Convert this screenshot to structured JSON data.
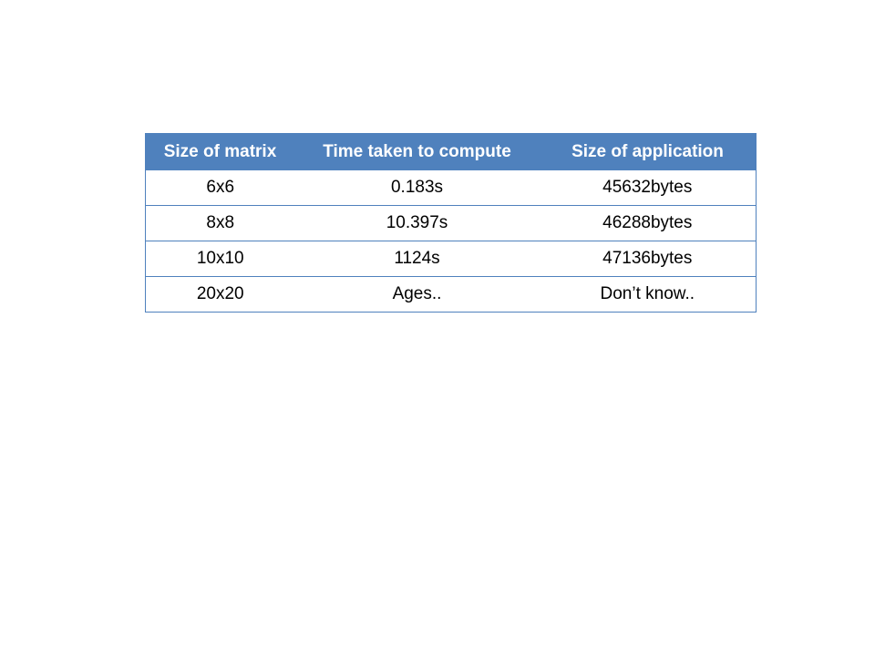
{
  "table": {
    "headers": [
      "Size of matrix",
      "Time taken to compute",
      "Size of application"
    ],
    "rows": [
      [
        "6x6",
        "0.183s",
        "45632bytes"
      ],
      [
        "8x8",
        "10.397s",
        "46288bytes"
      ],
      [
        "10x10",
        "1124s",
        "47136bytes"
      ],
      [
        "20x20",
        "Ages..",
        "Don’t know.."
      ]
    ]
  },
  "colors": {
    "header_bg": "#4f81bd",
    "header_text": "#ffffff",
    "border": "#4f81bd",
    "cell_text": "#000000"
  }
}
